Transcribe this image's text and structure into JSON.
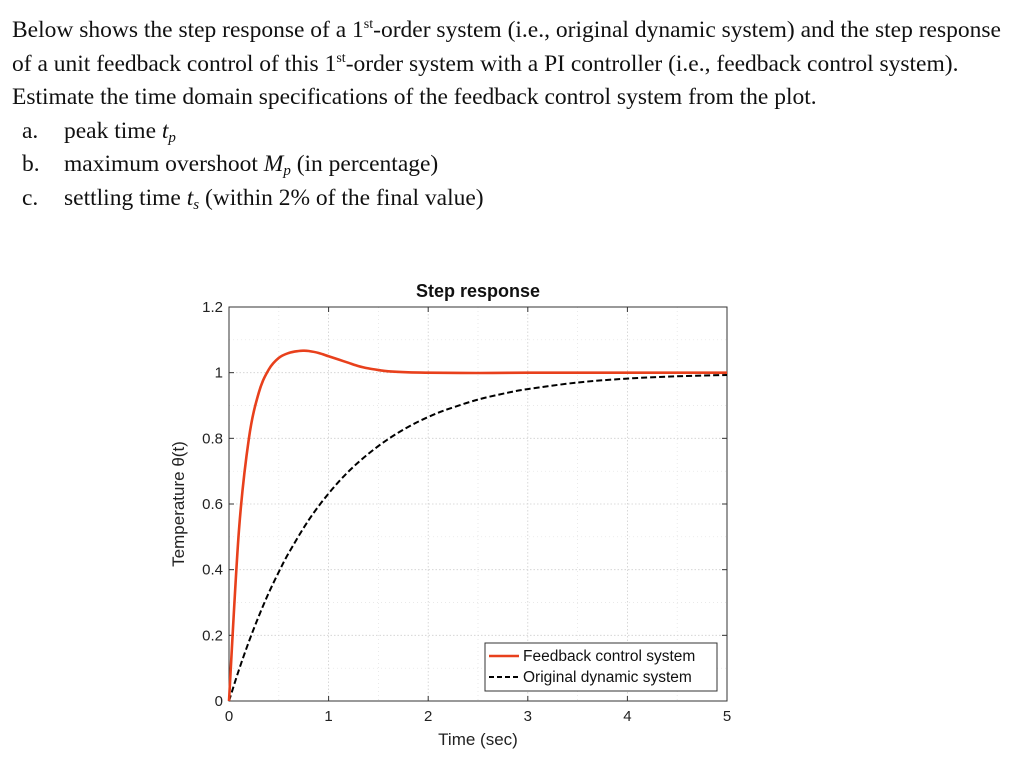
{
  "question": {
    "intro_1": "Below shows the step response of a 1",
    "intro_sup_1": "st",
    "intro_2": "-order system (i.e., original dynamic system) and the step response of a unit feedback control of this 1",
    "intro_sup_2": "st",
    "intro_3": "-order system with a PI controller (i.e., feedback control system). Estimate the time domain specifications of the feedback control system from the plot.",
    "items": [
      {
        "letter": "a.",
        "text_before": "peak time ",
        "symbol": "t",
        "subscript": "p",
        "text_after": ""
      },
      {
        "letter": "b.",
        "text_before": "maximum overshoot ",
        "symbol": "M",
        "subscript": "p",
        "text_after": " (in percentage)"
      },
      {
        "letter": "c.",
        "text_before": "settling time ",
        "symbol": "t",
        "subscript": "s",
        "text_after": " (within 2% of the final value)"
      }
    ]
  },
  "chart_data": {
    "type": "line",
    "title": "Step response",
    "xlabel": "Time (sec)",
    "ylabel": "Temperature θ(t)",
    "xlim": [
      0,
      5
    ],
    "ylim": [
      0,
      1.2
    ],
    "xticks": [
      0,
      1,
      2,
      3,
      4,
      5
    ],
    "yticks": [
      0,
      0.2,
      0.4,
      0.6,
      0.8,
      1,
      1.2
    ],
    "xtick_labels": [
      "0",
      "1",
      "2",
      "3",
      "4",
      "5"
    ],
    "ytick_labels": [
      "0",
      "0.2",
      "0.4",
      "0.6",
      "0.8",
      "1",
      "1.2"
    ],
    "grid": true,
    "legend_position": "bottom-right",
    "series": [
      {
        "name": "Feedback control system",
        "color": "#e8401c",
        "style": "solid",
        "x": [
          0,
          0.1,
          0.2,
          0.3,
          0.4,
          0.5,
          0.6,
          0.7,
          0.75,
          0.8,
          0.9,
          1.0,
          1.1,
          1.2,
          1.3,
          1.4,
          1.5,
          1.6,
          1.8,
          2.0,
          2.5,
          3.0,
          4.0,
          5.0
        ],
        "y": [
          0,
          0.52,
          0.8,
          0.94,
          1.01,
          1.045,
          1.06,
          1.066,
          1.067,
          1.066,
          1.06,
          1.05,
          1.04,
          1.03,
          1.02,
          1.013,
          1.008,
          1.004,
          1.001,
          1.0,
          0.999,
          1.0,
          1.0,
          1.0
        ]
      },
      {
        "name": "Original dynamic system",
        "color": "#000000",
        "style": "dashed",
        "x": [
          0,
          0.1,
          0.2,
          0.3,
          0.4,
          0.5,
          0.6,
          0.8,
          1.0,
          1.2,
          1.4,
          1.6,
          1.8,
          2.0,
          2.2,
          2.5,
          2.8,
          3.0,
          3.5,
          4.0,
          4.5,
          5.0
        ],
        "y": [
          0,
          0.095,
          0.181,
          0.259,
          0.33,
          0.393,
          0.451,
          0.551,
          0.632,
          0.699,
          0.753,
          0.798,
          0.835,
          0.865,
          0.889,
          0.918,
          0.939,
          0.95,
          0.97,
          0.982,
          0.989,
          0.993
        ]
      }
    ]
  }
}
